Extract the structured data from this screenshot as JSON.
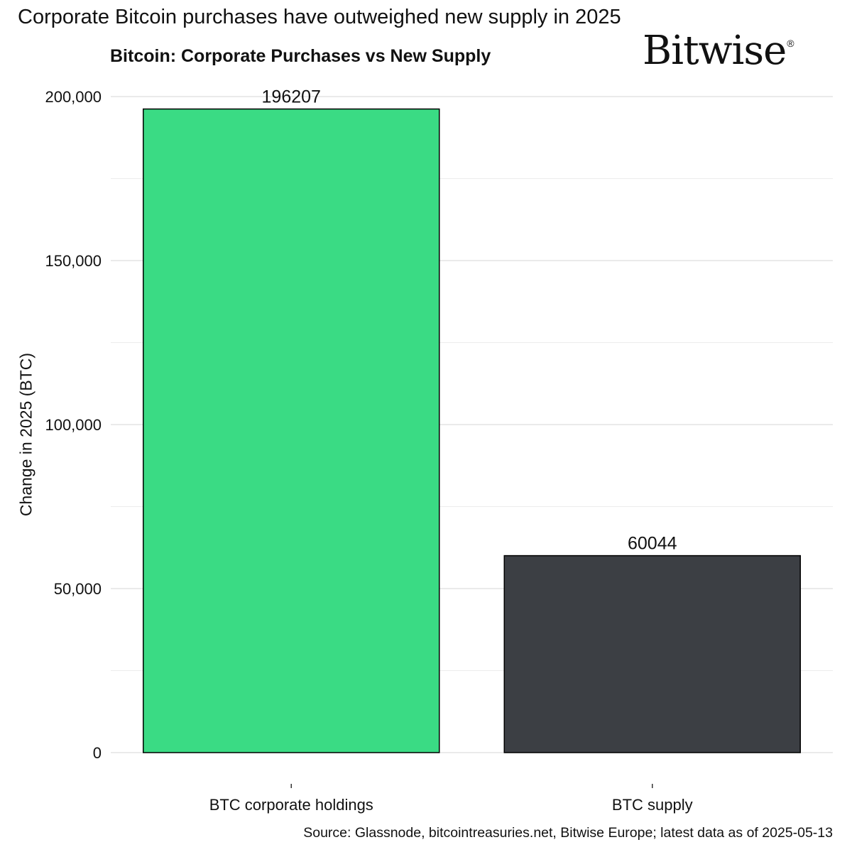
{
  "headline": "Corporate Bitcoin purchases have outweighed new supply in 2025",
  "logo": {
    "text": "Bitwise",
    "mark": "®"
  },
  "source": "Source: Glassnode, bitcointreasuries.net, Bitwise Europe; latest data as of 2025-05-13",
  "chart_data": {
    "type": "bar",
    "title": "Bitcoin: Corporate Purchases vs New Supply",
    "xlabel": "",
    "ylabel": "Change in 2025 (BTC)",
    "categories": [
      "BTC corporate holdings",
      "BTC supply"
    ],
    "values": [
      196207,
      60044
    ],
    "data_labels": [
      "196207",
      "60044"
    ],
    "colors": [
      "#3adb84",
      "#3c3f44"
    ],
    "ylim": [
      0,
      200000
    ],
    "yticks": [
      0,
      50000,
      100000,
      150000,
      200000
    ],
    "ytick_labels": [
      "0",
      "50,000",
      "100,000",
      "150,000",
      "200,000"
    ],
    "grid": true,
    "legend": "none"
  }
}
